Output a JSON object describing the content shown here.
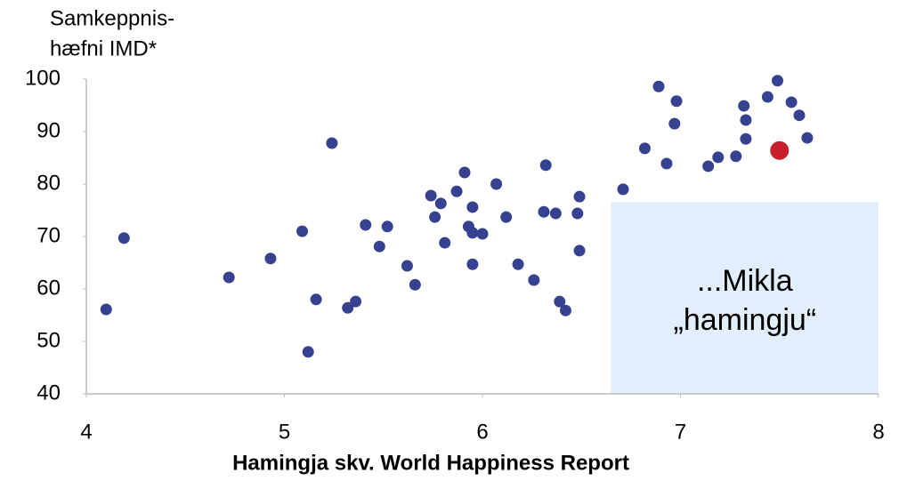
{
  "chart_data": {
    "type": "scatter",
    "ylabel": [
      "Samkeppnis-",
      "hæfni IMD*"
    ],
    "xlabel": "Hamingja skv. World Happiness Report",
    "color": "#36428f",
    "x": [
      4.1,
      4.19,
      4.72,
      4.93,
      5.09,
      5.12,
      5.16,
      5.24,
      5.32,
      5.36,
      5.41,
      5.48,
      5.52,
      5.62,
      5.66,
      5.74,
      5.76,
      5.79,
      5.81,
      5.87,
      5.91,
      5.93,
      5.95,
      5.95,
      5.95,
      6.0,
      6.07,
      6.12,
      6.18,
      6.26,
      6.31,
      6.32,
      6.37,
      6.39,
      6.42,
      6.48,
      6.49,
      6.49,
      6.71,
      6.82,
      6.89,
      6.93,
      6.97,
      6.98,
      7.14,
      7.19,
      7.28,
      7.32,
      7.33,
      7.33,
      7.44,
      7.49,
      7.56,
      7.6,
      7.64
    ],
    "values": [
      56.1,
      69.7,
      62.2,
      65.8,
      71.0,
      48.0,
      58.0,
      87.8,
      56.4,
      57.6,
      72.2,
      68.1,
      71.9,
      64.4,
      60.8,
      77.8,
      73.7,
      76.3,
      68.8,
      78.6,
      82.2,
      71.9,
      70.7,
      75.6,
      64.7,
      70.5,
      80.0,
      73.7,
      64.7,
      61.7,
      74.7,
      83.6,
      74.4,
      57.6,
      55.9,
      74.4,
      77.6,
      67.3,
      79.0,
      86.8,
      98.6,
      83.9,
      91.5,
      95.8,
      83.4,
      85.1,
      85.3,
      94.9,
      88.6,
      92.2,
      96.6,
      99.7,
      95.6,
      93.1,
      88.8
    ],
    "highlight": {
      "x": 7.5,
      "value": 86.4,
      "color": "#c8202a"
    },
    "region": {
      "x": [
        6.65,
        8
      ],
      "y": [
        40,
        76.6
      ],
      "color": "#e3eefc",
      "label": [
        "...Mikla",
        "„hamingju“"
      ]
    },
    "xlim": [
      4,
      8
    ],
    "xticks": [
      4,
      5,
      6,
      7,
      8
    ],
    "ylim": [
      40,
      100
    ],
    "yticks": [
      40,
      50,
      60,
      70,
      80,
      90,
      100
    ]
  }
}
